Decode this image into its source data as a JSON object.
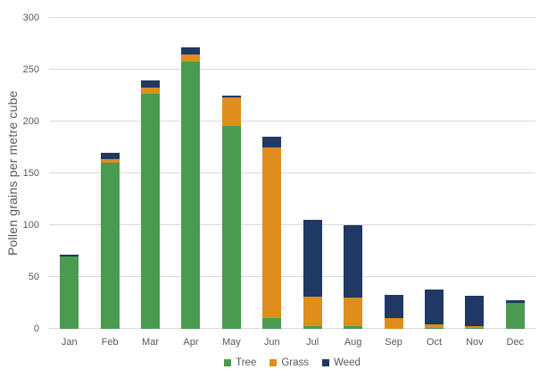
{
  "chart_data": {
    "type": "bar",
    "stacked": true,
    "title": "",
    "xlabel": "",
    "ylabel": "Pollen grains per metre cube",
    "ylim": [
      0,
      300
    ],
    "ytick_step": 50,
    "ytick_labels": [
      "0",
      "50",
      "100",
      "150",
      "200",
      "250",
      "300"
    ],
    "grid": true,
    "legend_position": "bottom-center",
    "categories": [
      "Jan",
      "Feb",
      "Mar",
      "Apr",
      "May",
      "Jun",
      "Jul",
      "Aug",
      "Sep",
      "Oct",
      "Nov",
      "Dec"
    ],
    "series": [
      {
        "name": "Tree",
        "color": "#4a9b50",
        "values": [
          70,
          160,
          227,
          258,
          196,
          10,
          3,
          3,
          0,
          1,
          1,
          25
        ]
      },
      {
        "name": "Grass",
        "color": "#dd8e1c",
        "values": [
          0,
          4,
          6,
          7,
          27,
          165,
          28,
          27,
          10,
          3,
          2,
          0
        ]
      },
      {
        "name": "Weed",
        "color": "#1f3864",
        "values": [
          2,
          6,
          7,
          7,
          2,
          10,
          74,
          70,
          23,
          34,
          29,
          3
        ]
      }
    ]
  },
  "style_colors": {
    "gridline": "#d9d9d9",
    "axis_text": "#595959",
    "background": "#ffffff"
  }
}
